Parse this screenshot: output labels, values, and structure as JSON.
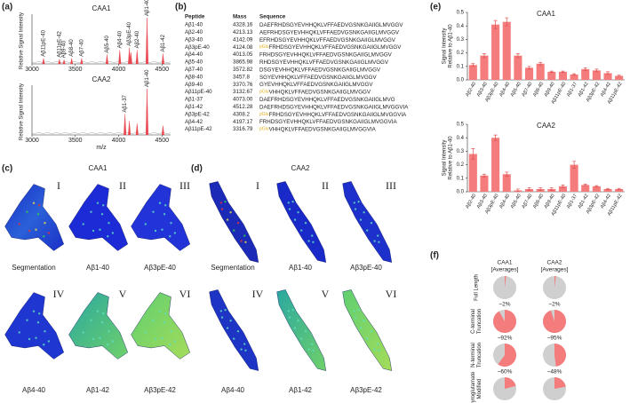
{
  "panel_labels": [
    "(a)",
    "(b)",
    "(c)",
    "(d)",
    "(e)",
    "(f)"
  ],
  "spectra": {
    "y_label": "Relative Signal Intensity",
    "x_label": "m/z",
    "xlim": [
      3000,
      4600
    ],
    "xticks": [
      3000,
      3500,
      4000,
      4500
    ],
    "ylim": [
      0,
      1
    ],
    "color": "#e8474f",
    "plots": [
      {
        "title": "CAA1",
        "x": [
          3133,
          3317,
          3370,
          3458,
          3573,
          3866,
          4013,
          4124,
          4142,
          4213,
          4328,
          4512
        ],
        "heights": [
          0.12,
          0.1,
          0.09,
          0.12,
          0.12,
          0.2,
          0.3,
          0.35,
          0.25,
          0.3,
          1.0,
          0.22
        ],
        "labels": [
          "Aβ11pE-40",
          "Aβ11pE-42",
          "Aβ9-40",
          "Aβ8-40",
          "Aβ7-40",
          "Aβ5-40",
          "Aβ4-40",
          "Aβ3pE-40",
          null,
          "Aβ2-40",
          "Aβ1-40",
          "Aβ1-42"
        ]
      },
      {
        "title": "CAA2",
        "x": [
          4073,
          4124,
          4213,
          4328,
          4512
        ],
        "heights": [
          0.45,
          0.3,
          0.25,
          1.0,
          0.2
        ],
        "labels": [
          "Aβ1-37",
          null,
          null,
          "Aβ1-40",
          null
        ]
      }
    ]
  },
  "table": {
    "header": [
      "Peptide",
      "Mass",
      "Sequence"
    ],
    "prefix_color": "#e0b020",
    "rows": [
      {
        "peptide": "Aβ1-40",
        "mass": "4328.16",
        "sequence": "DAEFRHDSGYEVHHQKLVFFAEDVGSNKGAIIGLMVGGV"
      },
      {
        "peptide": "Aβ2-40",
        "mass": "4213.13",
        "sequence": "AEFRHDSGYEVHHQKLVFFAEDVGSNKGAIIGLMVGGV"
      },
      {
        "peptide": "Aβ3-40",
        "mass": "4142.09",
        "sequence": "EFRHDSGYEVHHQKLVFFAEDVGSNKGAIIGLMVGGV"
      },
      {
        "peptide": "Aβ3pE-40",
        "mass": "4124.08",
        "prefix": "pGlu",
        "sequence": "FRHDSGYEVHHQKLVFFAEDVGSNKGAIIGLMVGGV"
      },
      {
        "peptide": "Aβ4-40",
        "mass": "4013.05",
        "sequence": "FRHDSGYEVHHQKLVFFAEDVGSNKGAIIGLMVGGV"
      },
      {
        "peptide": "Aβ5-40",
        "mass": "3865.98",
        "sequence": "RHDSGYEVHHQKLVFFAEDVGSNKGAIIGLMVGGV"
      },
      {
        "peptide": "Aβ7-40",
        "mass": "3572.82",
        "sequence": "DSGYEVHHQKLVFFAEDVGSNKGAIIGLMVGGV"
      },
      {
        "peptide": "Aβ8-40",
        "mass": "3457.8",
        "sequence": "SGYEVHHQKLVFFAEDVGSNKGAIIGLMVGGV"
      },
      {
        "peptide": "Aβ9-40",
        "mass": "3370.76",
        "sequence": "GYEVHHQKLVFFAEDVGSNKGAIIGLMVGGV"
      },
      {
        "peptide": "Aβ11pE-40",
        "mass": "3132.67",
        "prefix": "pGlu",
        "sequence": "VHHQKLVFFAEDVGSNKGAIIGLMVGGV"
      },
      {
        "peptide": "Aβ1-37",
        "mass": "4073.00",
        "sequence": "DAEFRHDSGYEVHHQKLVFFAEDVGSNKGAIIGLMVG"
      },
      {
        "peptide": "Aβ1-42",
        "mass": "4512.28",
        "sequence": "DAEFRHDSGYEVHHQKLVFFAEDVGSNKGAIIGLMVGGVIA"
      },
      {
        "peptide": "Aβ3pE-42",
        "mass": "4308.2",
        "prefix": "pGlu",
        "sequence": "FRHDSGYEVHHQKLVFFAEDVGSNKGAIIGLMVGGVIA"
      },
      {
        "peptide": "Aβ4-42",
        "mass": "4197.17",
        "sequence": "FRHDSGYEVHHQKLVFFAEDVGSNKGAIIGLMVGGVIA"
      },
      {
        "peptide": "Aβ11pE-42",
        "mass": "3316.79",
        "prefix": "pGlu",
        "sequence": "VHHQKLVFFAEDVGSNKGAIIGLMVGGVIA"
      }
    ]
  },
  "images": [
    {
      "title": "CAA1",
      "tiles": [
        {
          "numeral": "I",
          "label": "Segmentation"
        },
        {
          "numeral": "II",
          "label": "Aβ1-40"
        },
        {
          "numeral": "III",
          "label": "Aβ3pE-40"
        },
        {
          "numeral": "IV",
          "label": "Aβ4-40"
        },
        {
          "numeral": "V",
          "label": "Aβ1-42"
        },
        {
          "numeral": "VI",
          "label": "Aβ3pE-42"
        }
      ]
    },
    {
      "title": "CAA2",
      "tiles": [
        {
          "numeral": "I",
          "label": "Segmentation"
        },
        {
          "numeral": "II",
          "label": "Aβ1-40"
        },
        {
          "numeral": "III",
          "label": "Aβ3pE-40"
        },
        {
          "numeral": "IV",
          "label": "Aβ4-40"
        },
        {
          "numeral": "V",
          "label": "Aβ1-42"
        },
        {
          "numeral": "VI",
          "label": "Aβ3pE-42"
        }
      ]
    }
  ],
  "chart_data": [
    {
      "type": "bar",
      "title": "CAA1",
      "y_label": [
        "Signal Intensity",
        "Relative to Aβ1-40"
      ],
      "categories": [
        "Aβ2-40",
        "Aβ3-40",
        "Aβ3pE-40",
        "Aβ4-40",
        "Aβ5-40",
        "Aβ7-40",
        "Aβ8-40",
        "Aβ9-40",
        "Aβ11pE-40",
        "Aβ1-37",
        "Aβ1-42",
        "Aβ3pE-42",
        "Aβ4-42",
        "Aβ11pE-42"
      ],
      "values": [
        0.11,
        0.18,
        0.41,
        0.43,
        0.18,
        0.09,
        0.12,
        0.06,
        0.06,
        0.04,
        0.08,
        0.07,
        0.05,
        0.03
      ],
      "errors": [
        0.01,
        0.015,
        0.03,
        0.03,
        0.015,
        0.01,
        0.01,
        0.005,
        0.005,
        0.005,
        0.01,
        0.01,
        0.01,
        0.005
      ],
      "color": "#f47c7c",
      "ylim": [
        0,
        0.5
      ],
      "yticks": [
        {
          "value": 0,
          "label": "0.0"
        },
        0.1,
        0.2,
        0.3,
        0.4,
        0.5
      ]
    },
    {
      "type": "bar",
      "title": "CAA2",
      "y_label": [
        "Signal Intensity",
        "Relative to Aβ1-40"
      ],
      "categories": [
        "Aβ2-40",
        "Aβ3-40",
        "Aβ3pE-40",
        "Aβ4-40",
        "Aβ5-40",
        "Aβ7-40",
        "Aβ8-40",
        "Aβ9-40",
        "Aβ11pE-40",
        "Aβ1-37",
        "Aβ1-42",
        "Aβ3pE-42",
        "Aβ4-42",
        "Aβ11pE-42"
      ],
      "values": [
        0.28,
        0.12,
        0.4,
        0.13,
        0.01,
        0.02,
        0.02,
        0.02,
        0.04,
        0.2,
        0.05,
        0.04,
        0.02,
        0.02
      ],
      "errors": [
        0.04,
        0.01,
        0.02,
        0.015,
        0.01,
        0.01,
        0.01,
        0.01,
        0.01,
        0.025,
        0.005,
        0.005,
        0.005,
        0.005
      ],
      "color": "#f47c7c",
      "ylim": [
        0,
        0.5
      ],
      "yticks": [
        {
          "value": 0,
          "label": "0.0"
        },
        0.1,
        0.2,
        0.3,
        0.4,
        0.5
      ]
    },
    {
      "type": "pie-grid",
      "color": "#f47c7c",
      "rest_color": "#cfcfcf",
      "columns": [
        [
          "CAA1",
          "[Averages]"
        ],
        [
          "CAA2",
          "[Averages]"
        ]
      ],
      "rows": [
        {
          "label": [
            "Full Length"
          ],
          "values": [
            2,
            2
          ],
          "value_labels": [
            "~2%",
            "~2%"
          ]
        },
        {
          "label": [
            "C-terminal",
            "Truncation"
          ],
          "values": [
            92,
            95
          ],
          "value_labels": [
            "~92%",
            "~95%"
          ]
        },
        {
          "label": [
            "N-terminal",
            "Truncation"
          ],
          "values": [
            60,
            48
          ],
          "value_labels": [
            "~60%",
            "~48%"
          ]
        },
        {
          "label": [
            "Pyroglutamate",
            "Modified"
          ],
          "values": [
            21,
            22
          ],
          "value_labels": [
            "~21%",
            "~22%"
          ]
        }
      ]
    }
  ]
}
